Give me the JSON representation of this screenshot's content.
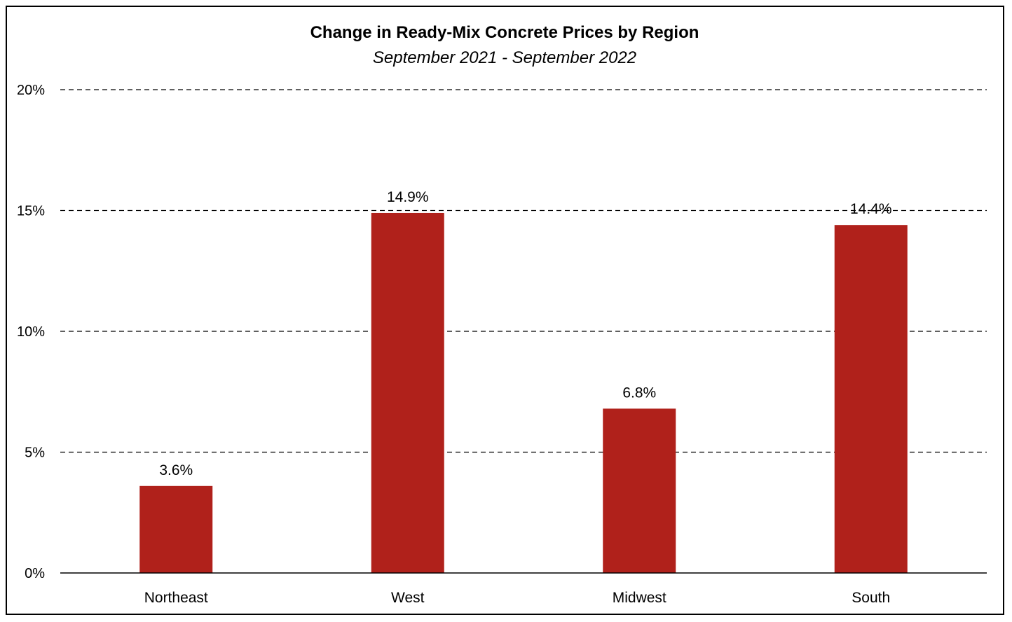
{
  "chart_data": {
    "type": "bar",
    "title": "Change in Ready-Mix Concrete Prices by Region",
    "subtitle": "September 2021 - September 2022",
    "xlabel": "",
    "ylabel": "",
    "categories": [
      "Northeast",
      "West",
      "Midwest",
      "South"
    ],
    "values": [
      3.6,
      14.9,
      6.8,
      14.4
    ],
    "data_labels": [
      "3.6%",
      "14.9%",
      "6.8%",
      "14.4%"
    ],
    "ylim": [
      0,
      20
    ],
    "y_ticks": [
      0,
      5,
      10,
      15,
      20
    ],
    "y_tick_labels": [
      "0%",
      "5%",
      "10%",
      "15%",
      "20%"
    ],
    "grid": "dashed horizontal",
    "legend": "none",
    "bar_color": "#b0211b"
  }
}
